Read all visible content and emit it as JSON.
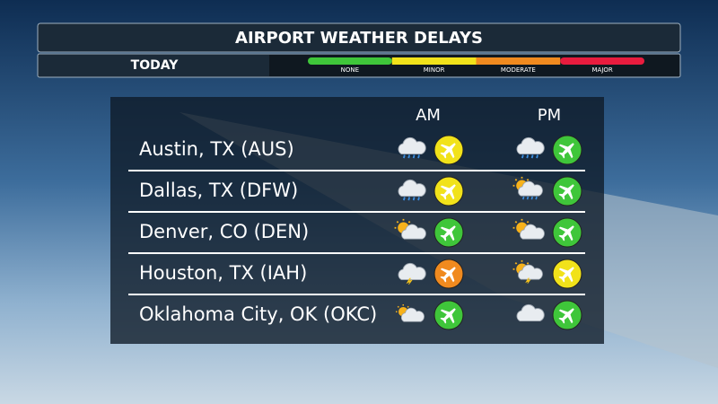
{
  "header": {
    "title": "AIRPORT WEATHER DELAYS",
    "tab": "TODAY"
  },
  "legend": [
    {
      "label": "NONE",
      "color": "#3fc63a"
    },
    {
      "label": "MINOR",
      "color": "#f1e21a"
    },
    {
      "label": "MODERATE",
      "color": "#f08a1f"
    },
    {
      "label": "MAJOR",
      "color": "#e81c3e"
    }
  ],
  "columns": [
    "AM",
    "PM"
  ],
  "rows": [
    {
      "city": "Austin, TX (AUS)",
      "am_delay": "MINOR",
      "pm_delay": "NONE"
    },
    {
      "city": "Dallas, TX (DFW)",
      "am_delay": "MINOR",
      "pm_delay": "NONE"
    },
    {
      "city": "Denver, CO (DEN)",
      "am_delay": "NONE",
      "pm_delay": "NONE"
    },
    {
      "city": "Houston, TX (IAH)",
      "am_delay": "MODERATE",
      "pm_delay": "MINOR"
    },
    {
      "city": "Oklahoma City, OK (OKC)",
      "am_delay": "NONE",
      "pm_delay": "NONE"
    }
  ]
}
